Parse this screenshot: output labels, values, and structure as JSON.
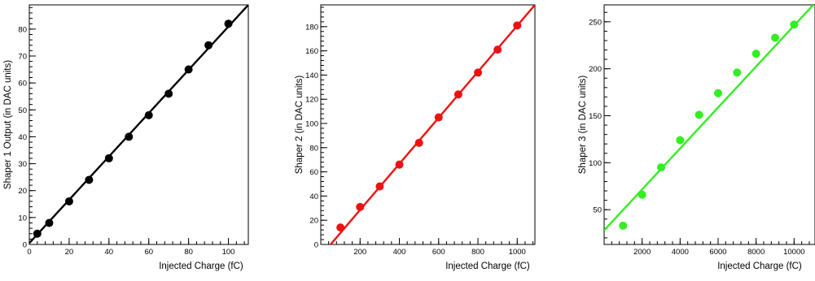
{
  "chart_data": [
    {
      "type": "scatter",
      "title": "",
      "xlabel": "Injected Charge (fC)",
      "ylabel": "Shaper 1 Output (in DAC units)",
      "xlim": [
        0,
        110
      ],
      "ylim": [
        0,
        89
      ],
      "xticks": [
        0,
        20,
        40,
        60,
        80,
        100
      ],
      "yticks": [
        0,
        10,
        20,
        30,
        40,
        50,
        60,
        70,
        80
      ],
      "grid": false,
      "color": "#000000",
      "series": [
        {
          "x": [
            4,
            10,
            20,
            30,
            40,
            50,
            60,
            70,
            80,
            90,
            100
          ],
          "y": [
            4,
            8,
            16,
            24,
            32,
            40,
            48,
            56,
            65,
            74,
            82
          ]
        }
      ],
      "fit_line": {
        "x": [
          0,
          110
        ],
        "y": [
          0.5,
          89
        ]
      }
    },
    {
      "type": "scatter",
      "title": "",
      "xlabel": "Injected Charge (fC)",
      "ylabel": "Shaper 2 (in DAC units)",
      "xlim": [
        0,
        1090
      ],
      "ylim": [
        0,
        198
      ],
      "xticks": [
        200,
        400,
        600,
        800,
        1000
      ],
      "yticks": [
        0,
        20,
        40,
        60,
        80,
        100,
        120,
        140,
        160,
        180
      ],
      "grid": false,
      "color": "#ee1111",
      "series": [
        {
          "x": [
            100,
            200,
            300,
            400,
            500,
            600,
            700,
            800,
            900,
            1000
          ],
          "y": [
            14,
            31,
            48,
            66,
            84,
            105,
            124,
            142,
            161,
            181
          ]
        }
      ],
      "fit_line": {
        "x": [
          0,
          1090
        ],
        "y": [
          -9.5,
          198
        ]
      }
    },
    {
      "type": "scatter",
      "title": "",
      "xlabel": "Injected Charge (fC)",
      "ylabel": "Shaper 3 (in DAC units)",
      "xlim": [
        0,
        11100
      ],
      "ylim": [
        13,
        268
      ],
      "xticks": [
        2000,
        4000,
        6000,
        8000,
        10000
      ],
      "yticks": [
        50,
        100,
        150,
        200,
        250
      ],
      "grid": false,
      "color": "#33ee22",
      "series": [
        {
          "x": [
            1000,
            2000,
            3000,
            4000,
            5000,
            6000,
            7000,
            8000,
            9000,
            10000
          ],
          "y": [
            33,
            66,
            95,
            124,
            151,
            174,
            196,
            216,
            233,
            247
          ]
        }
      ],
      "fit_line": {
        "x": [
          0,
          11100
        ],
        "y": [
          28,
          270
        ]
      }
    }
  ]
}
